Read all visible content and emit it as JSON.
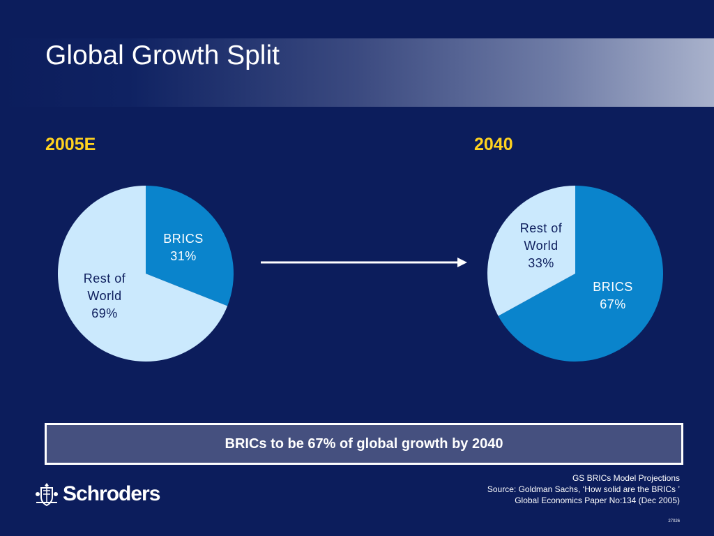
{
  "page_title": "Global Growth Split",
  "colors": {
    "background": "#0c1d5c",
    "year_label": "#ffd21f",
    "brics": "#0a84cc",
    "rest_of_world": "#cbe9fd",
    "brics_label": "#ffffff",
    "rest_label": "#0c1d5c"
  },
  "chart_data": [
    {
      "type": "pie",
      "title": "2005E",
      "slices": [
        {
          "label": [
            "BRICS",
            "31%"
          ],
          "name": "BRICS",
          "value": 31
        },
        {
          "label": [
            "Rest of",
            "World",
            "69%"
          ],
          "name": "Rest of World",
          "value": 69
        }
      ]
    },
    {
      "type": "pie",
      "title": "2040",
      "slices": [
        {
          "label": [
            "BRICS",
            "67%"
          ],
          "name": "BRICS",
          "value": 67
        },
        {
          "label": [
            "Rest of",
            "World",
            "33%"
          ],
          "name": "Rest of World",
          "value": 33
        }
      ]
    }
  ],
  "callout": "BRICs to be 67% of global growth by 2040",
  "logo_text": "Schroders",
  "source_lines": [
    "GS BRICs Model Projections",
    "Source: Goldman Sachs, ‘How solid are the BRICs ’",
    "Global Economics Paper No:134 (Dec 2005)"
  ],
  "slide_code": "27026"
}
